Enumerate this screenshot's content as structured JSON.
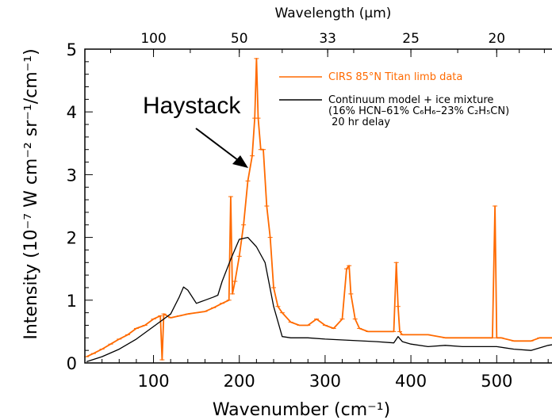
{
  "chart_data": {
    "type": "line",
    "xlabel": "Wavenumber (cm⁻¹)",
    "ylabel": "Intensity (10⁻⁷ W cm⁻² sr⁻¹/cm⁻¹)",
    "top_axis_label": "Wavelength (μm)",
    "xlim": [
      20,
      570
    ],
    "ylim": [
      0,
      5
    ],
    "x_ticks": [
      100,
      200,
      300,
      400,
      500
    ],
    "y_ticks": [
      0,
      1,
      2,
      3,
      4,
      5
    ],
    "top_ticks": [
      {
        "label": "100",
        "wavenumber": 100
      },
      {
        "label": "50",
        "wavenumber": 200
      },
      {
        "label": "33",
        "wavenumber": 303
      },
      {
        "label": "25",
        "wavenumber": 400
      },
      {
        "label": "20",
        "wavenumber": 500
      }
    ],
    "grid": false,
    "legend_position": "top-right",
    "series": [
      {
        "name": "CIRS 85°N Titan limb data",
        "color": "#ff6a00",
        "x": [
          22,
          30,
          40,
          50,
          60,
          70,
          80,
          90,
          100,
          108,
          110,
          112,
          120,
          130,
          140,
          150,
          160,
          170,
          180,
          188,
          190,
          192,
          195,
          200,
          205,
          210,
          215,
          218,
          220,
          222,
          225,
          228,
          232,
          236,
          240,
          245,
          250,
          260,
          270,
          280,
          290,
          300,
          310,
          320,
          325,
          328,
          330,
          335,
          340,
          350,
          360,
          370,
          380,
          383,
          385,
          387,
          390,
          400,
          420,
          440,
          460,
          480,
          495,
          498,
          500,
          502,
          505,
          520,
          540,
          550,
          560,
          570
        ],
        "y": [
          0.1,
          0.15,
          0.22,
          0.3,
          0.38,
          0.45,
          0.55,
          0.6,
          0.7,
          0.75,
          0.05,
          0.78,
          0.72,
          0.75,
          0.78,
          0.8,
          0.82,
          0.88,
          0.95,
          1.0,
          2.65,
          1.1,
          1.3,
          1.7,
          2.2,
          2.9,
          3.3,
          3.9,
          4.85,
          3.9,
          3.4,
          3.4,
          2.5,
          2.0,
          1.2,
          0.9,
          0.8,
          0.65,
          0.6,
          0.6,
          0.7,
          0.6,
          0.55,
          0.7,
          1.5,
          1.55,
          1.1,
          0.7,
          0.55,
          0.5,
          0.5,
          0.5,
          0.5,
          1.6,
          0.9,
          0.5,
          0.45,
          0.45,
          0.45,
          0.4,
          0.4,
          0.4,
          0.4,
          2.5,
          0.4,
          0.4,
          0.4,
          0.35,
          0.35,
          0.4,
          0.4,
          0.4
        ]
      },
      {
        "name": "Continuum model + ice mixture",
        "legend_lines": [
          "Continuum model + ice mixture",
          "(16% HCN–61% C₆H₆–23% C₂H₅CN)",
          " 20 hr delay"
        ],
        "color": "#000000",
        "x": [
          22,
          40,
          60,
          80,
          100,
          110,
          120,
          130,
          135,
          140,
          150,
          160,
          170,
          175,
          180,
          190,
          200,
          210,
          220,
          230,
          240,
          250,
          260,
          280,
          300,
          330,
          360,
          380,
          385,
          390,
          400,
          420,
          440,
          460,
          480,
          500,
          520,
          540,
          560,
          570
        ],
        "y": [
          0.02,
          0.1,
          0.22,
          0.38,
          0.58,
          0.68,
          0.78,
          1.05,
          1.21,
          1.16,
          0.95,
          1.0,
          1.05,
          1.08,
          1.3,
          1.65,
          1.97,
          2.0,
          1.85,
          1.6,
          0.9,
          0.42,
          0.4,
          0.4,
          0.38,
          0.36,
          0.34,
          0.32,
          0.42,
          0.34,
          0.3,
          0.26,
          0.28,
          0.26,
          0.26,
          0.26,
          0.22,
          0.2,
          0.28,
          0.3
        ]
      }
    ],
    "annotations": [
      {
        "text": "Haystack",
        "points_to_x": 215,
        "points_to_y": 3.0
      }
    ]
  }
}
